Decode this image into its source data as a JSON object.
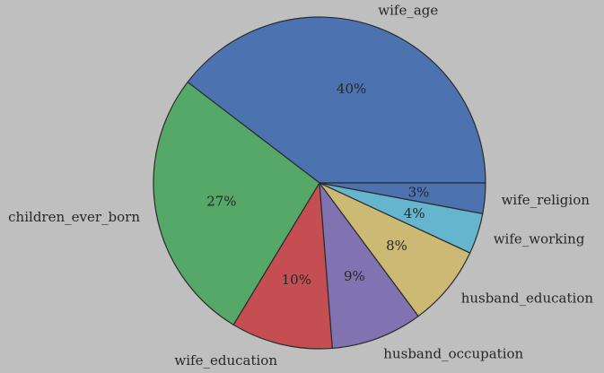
{
  "chart_data": {
    "type": "pie",
    "title": "",
    "start_angle_deg": 0,
    "direction": "counterclockwise",
    "slices": [
      {
        "label": "wife_age",
        "value": 40,
        "pct_label": "40%",
        "color": "#4c72b0"
      },
      {
        "label": "children_ever_born",
        "value": 27,
        "pct_label": "27%",
        "color": "#55a868"
      },
      {
        "label": "wife_education",
        "value": 10,
        "pct_label": "10%",
        "color": "#c44e52"
      },
      {
        "label": "husband_occupation",
        "value": 9,
        "pct_label": "9%",
        "color": "#8172b2"
      },
      {
        "label": "husband_education",
        "value": 8,
        "pct_label": "8%",
        "color": "#ccb974"
      },
      {
        "label": "wife_working",
        "value": 4,
        "pct_label": "4%",
        "color": "#64b5cd"
      },
      {
        "label": "wife_religion",
        "value": 3,
        "pct_label": "3%",
        "color": "#4c72b0"
      }
    ]
  }
}
